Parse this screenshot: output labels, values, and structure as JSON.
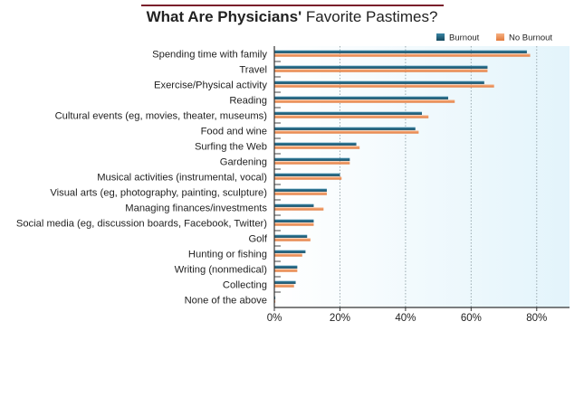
{
  "chart_data": {
    "type": "bar",
    "orientation": "horizontal",
    "title_bold": "What Are Physicians'",
    "title_regular": "Favorite Pastimes?",
    "categories": [
      "Spending time with family",
      "Travel",
      "Exercise/Physical activity",
      "Reading",
      "Cultural events (eg, movies, theater, museums)",
      "Food and wine",
      "Surfing the Web",
      "Gardening",
      "Musical activities (instrumental, vocal)",
      "Visual arts (eg, photography, painting, sculpture)",
      "Managing finances/investments",
      "Social media (eg, discussion boards, Facebook, Twitter)",
      "Golf",
      "Hunting or fishing",
      "Writing (nonmedical)",
      "Collecting",
      "None of the above"
    ],
    "series": [
      {
        "name": "Burnout",
        "color": "#1f5f7a",
        "values": [
          77,
          65,
          64,
          53,
          45,
          43,
          25,
          23,
          20,
          16,
          12,
          12,
          10,
          9.5,
          7,
          6.5,
          0.3
        ]
      },
      {
        "name": "No Burnout",
        "color": "#f0955a",
        "values": [
          78,
          65,
          67,
          55,
          47,
          44,
          26,
          23,
          20.5,
          16,
          15,
          12,
          11,
          8.5,
          7,
          6,
          0.3
        ]
      }
    ],
    "x_ticks": [
      "0%",
      "20%",
      "40%",
      "60%",
      "80%"
    ],
    "x_tick_values": [
      0,
      20,
      40,
      60,
      80
    ],
    "xlim": [
      0,
      90
    ],
    "grid": true,
    "legend_position": "top-right"
  }
}
